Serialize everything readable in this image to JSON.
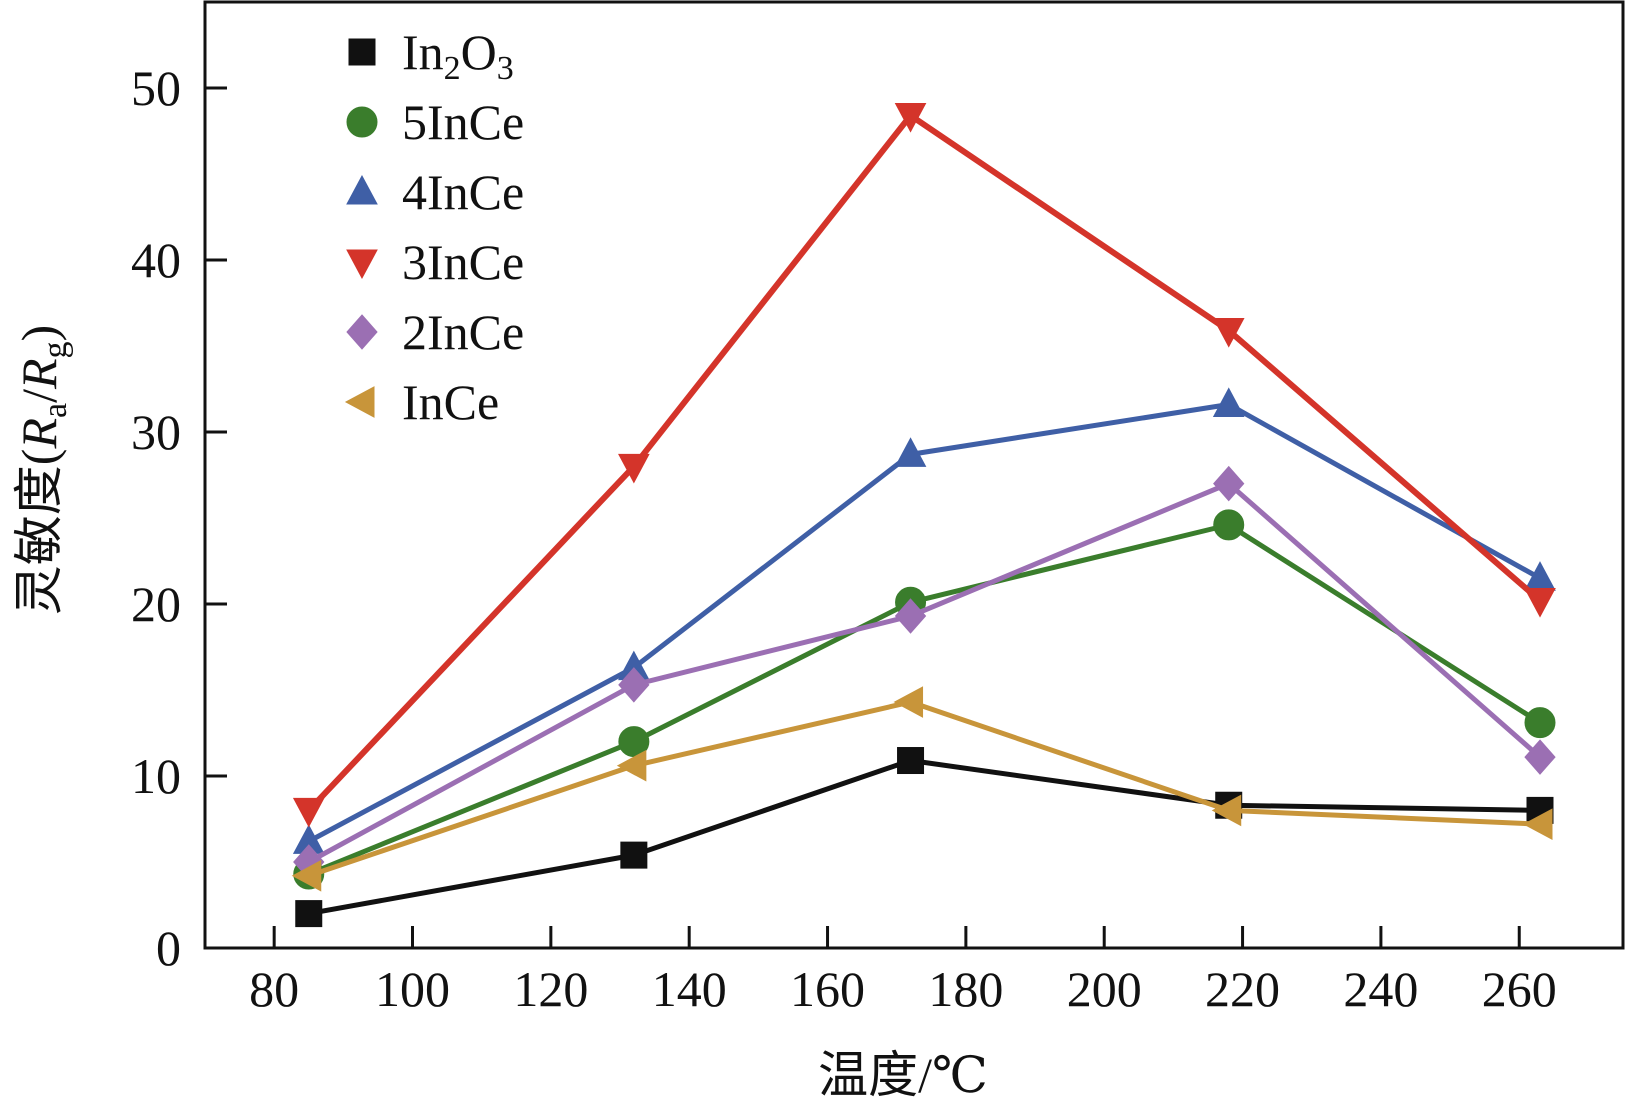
{
  "chart_data": {
    "type": "line",
    "title": "",
    "xlabel": "温度/℃",
    "ylabel": {
      "prefix": "灵敏度(",
      "num_var": "R",
      "num_sub": "a",
      "slash": "/",
      "den_var": "R",
      "den_sub": "g",
      "suffix": ")"
    },
    "xlim": [
      70,
      275
    ],
    "ylim": [
      0,
      55
    ],
    "xticks": [
      80,
      100,
      120,
      140,
      160,
      180,
      200,
      220,
      240,
      260
    ],
    "yticks": [
      0,
      10,
      20,
      30,
      40,
      50
    ],
    "xtick_labels": [
      "80",
      "100",
      "120",
      "140",
      "160",
      "180",
      "200",
      "220",
      "240",
      "260"
    ],
    "ytick_labels": [
      "0",
      "10",
      "20",
      "30",
      "40",
      "50"
    ],
    "legend_position": "top-left",
    "x": [
      85,
      132,
      172,
      218,
      263
    ],
    "series": [
      {
        "name": "In2O3",
        "label_parts": [
          "In",
          "2",
          "O",
          "3"
        ],
        "color": "#111111",
        "marker": "square",
        "values": [
          2.0,
          5.4,
          10.9,
          8.3,
          8.0
        ]
      },
      {
        "name": "5InCe",
        "color": "#3a7d2c",
        "marker": "circle",
        "values": [
          4.3,
          12.0,
          20.1,
          24.6,
          13.1
        ]
      },
      {
        "name": "4InCe",
        "color": "#3f5fa6",
        "marker": "triangle-up",
        "values": [
          6.2,
          16.3,
          28.7,
          31.6,
          21.5
        ]
      },
      {
        "name": "3InCe",
        "color": "#d4342a",
        "marker": "triangle-down",
        "values": [
          8.0,
          28.0,
          48.4,
          35.9,
          20.2
        ]
      },
      {
        "name": "2InCe",
        "color": "#9b6fb3",
        "marker": "diamond",
        "values": [
          5.0,
          15.3,
          19.3,
          27.0,
          11.1
        ]
      },
      {
        "name": "InCe",
        "color": "#c8953a",
        "marker": "triangle-left",
        "values": [
          4.2,
          10.6,
          14.3,
          8.0,
          7.2
        ]
      }
    ]
  }
}
